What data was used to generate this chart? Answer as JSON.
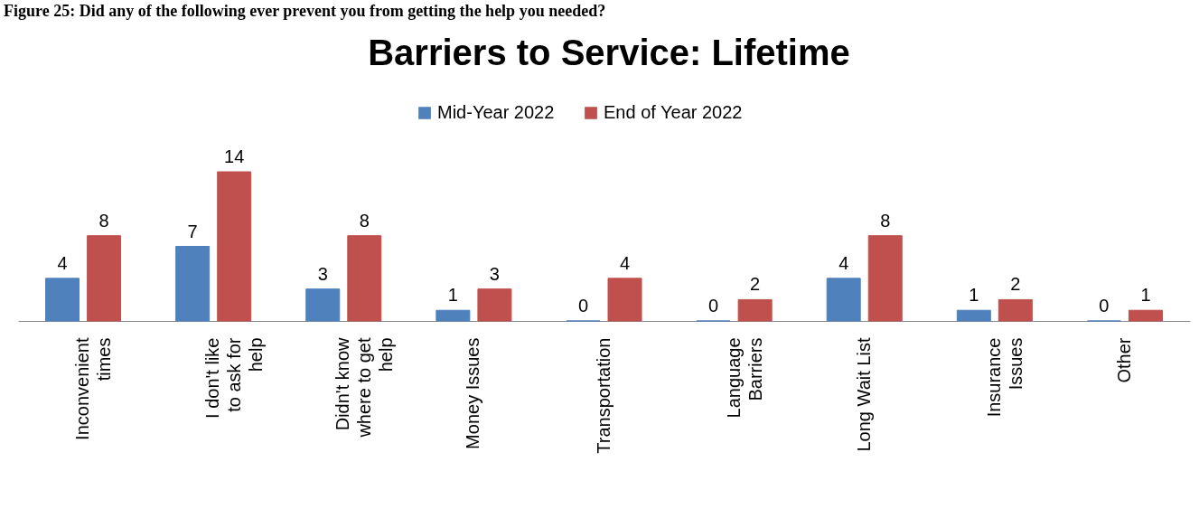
{
  "chart_data": {
    "type": "bar",
    "title": "Barriers to Service: Lifetime",
    "annotations": [
      "Figure 25: Did any of the following ever prevent you from getting the help you needed?"
    ],
    "categories": [
      "Inconvenient times",
      "I don't like to ask for help",
      "Didn't know where to get help",
      "Money Issues",
      "Transportation",
      "Language Barriers",
      "Long Wait List",
      "Insurance Issues",
      "Other"
    ],
    "series": [
      {
        "name": "Mid-Year 2022",
        "color": "#4f81bd",
        "values": [
          4,
          7,
          3,
          1,
          0,
          0,
          4,
          1,
          0
        ]
      },
      {
        "name": "End of Year 2022",
        "color": "#c0504d",
        "values": [
          8,
          14,
          8,
          3,
          4,
          2,
          8,
          2,
          1
        ]
      }
    ],
    "data_labels": true,
    "legend": "top",
    "grid": false
  }
}
